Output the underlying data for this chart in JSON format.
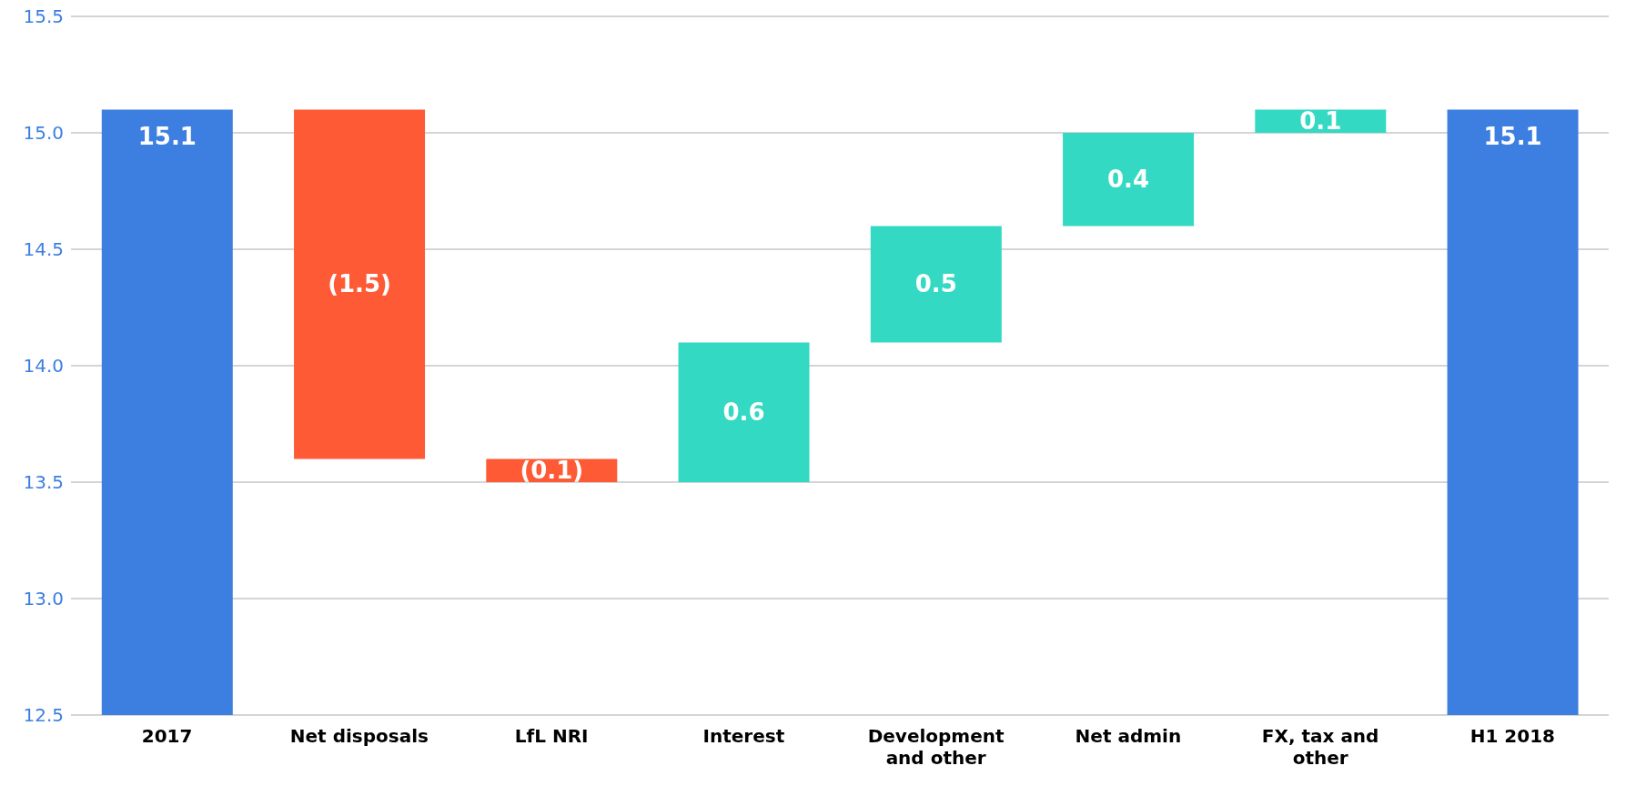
{
  "chart_data": {
    "type": "bar",
    "categories": [
      "2017",
      "Net disposals",
      "LfL NRI",
      "Interest",
      "Development and other",
      "Net admin",
      "FX, tax and other",
      "H1 2018"
    ],
    "values": [
      15.1,
      -1.5,
      -0.1,
      0.6,
      0.5,
      0.4,
      0.1,
      15.1
    ],
    "base": [
      0,
      15.1,
      13.6,
      13.5,
      14.1,
      14.6,
      15.0,
      0
    ],
    "colors": [
      "#3d7fe0",
      "#ff5a36",
      "#ff5a36",
      "#34d9c3",
      "#34d9c3",
      "#34d9c3",
      "#34d9c3",
      "#3d7fe0"
    ],
    "value_labels": [
      "15.1",
      "(1.5)",
      "(0.1)",
      "0.6",
      "0.5",
      "0.4",
      "0.1",
      "15.1"
    ],
    "ylim": [
      12.5,
      15.5
    ],
    "yticks": [
      {
        "value": 12.5,
        "label": "12.5"
      },
      {
        "value": 13,
        "label": "13.0"
      },
      {
        "value": 13.5,
        "label": "13.5"
      },
      {
        "value": 14,
        "label": "14.0"
      },
      {
        "value": 14.5,
        "label": "14.5"
      },
      {
        "value": 15,
        "label": "15.0"
      },
      {
        "value": 15.5,
        "label": "15.5"
      }
    ],
    "grid": "y"
  }
}
